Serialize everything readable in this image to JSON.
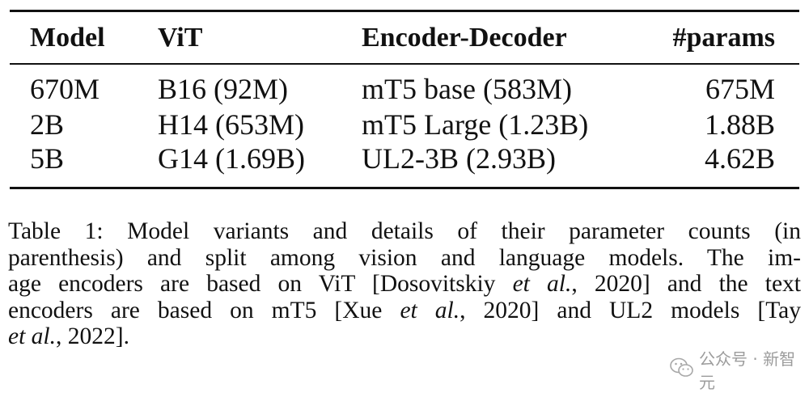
{
  "table": {
    "headers": [
      "Model",
      "ViT",
      "Encoder-Decoder",
      "#params"
    ],
    "rows": [
      [
        "670M",
        "B16 (92M)",
        "mT5 base (583M)",
        "675M"
      ],
      [
        "2B",
        "H14 (653M)",
        "mT5 Large (1.23B)",
        "1.88B"
      ],
      [
        "5B",
        "G14 (1.69B)",
        "UL2-3B (2.93B)",
        "4.62B"
      ]
    ]
  },
  "caption": {
    "line1": "Table 1: Model variants and details of their parameter counts (in",
    "line2": "parenthesis) and split among vision and language models. The im-",
    "line3_a": "age encoders are based on ViT [Dosovitskiy ",
    "line3_i": "et al.",
    "line3_b": ", 2020] and the text",
    "line4_a": "encoders are based on mT5 [Xue ",
    "line4_i": "et al.",
    "line4_b": ", 2020] and UL2 models [Tay",
    "line5_i": "et al.",
    "line5_b": ", 2022]."
  },
  "watermark": {
    "icon": "wechat-icon",
    "text": "公众号 · 新智元"
  }
}
